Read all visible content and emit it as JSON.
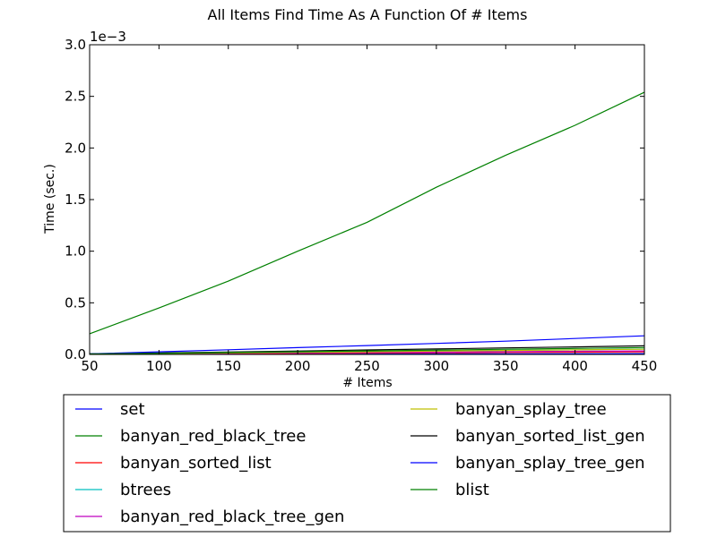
{
  "chart_data": {
    "type": "line",
    "title": "All Items Find Time As A Function Of # Items",
    "xlabel": "# Items",
    "ylabel": "Time (sec.)",
    "y_offset_label": "1e−3",
    "xlim": [
      50,
      450
    ],
    "ylim": [
      0,
      0.003
    ],
    "x_ticks": [
      50,
      100,
      150,
      200,
      250,
      300,
      350,
      400,
      450
    ],
    "x_tick_labels": [
      "50",
      "100",
      "150",
      "200",
      "250",
      "300",
      "350",
      "400",
      "450"
    ],
    "y_ticks": [
      0,
      0.0005,
      0.001,
      0.0015,
      0.002,
      0.0025,
      0.003
    ],
    "y_tick_labels": [
      "0.0",
      "0.5",
      "1.0",
      "1.5",
      "2.0",
      "2.5",
      "3.0"
    ],
    "grid": false,
    "legend_placement": "below",
    "x": [
      50,
      100,
      150,
      200,
      250,
      300,
      350,
      400,
      450
    ],
    "series": [
      {
        "name": "set",
        "color": "#0000ff",
        "values": [
          1.5e-06,
          2.5e-06,
          3e-06,
          4e-06,
          4.5e-06,
          5e-06,
          6e-06,
          7e-06,
          7.5e-06
        ]
      },
      {
        "name": "banyan_red_black_tree",
        "color": "#008000",
        "values": [
          0.0002,
          0.00045,
          0.00071,
          0.001,
          0.00128,
          0.00162,
          0.00193,
          0.00222,
          0.00254
        ]
      },
      {
        "name": "banyan_sorted_list",
        "color": "#ff0000",
        "values": [
          2e-06,
          4e-06,
          7e-06,
          1e-05,
          1.3e-05,
          1.6e-05,
          1.9e-05,
          2.2e-05,
          2.5e-05
        ]
      },
      {
        "name": "btrees",
        "color": "#00bfbf",
        "values": [
          4e-06,
          9e-06,
          1.5e-05,
          2.1e-05,
          2.7e-05,
          3.3e-05,
          3.9e-05,
          4.5e-05,
          5.2e-05
        ]
      },
      {
        "name": "banyan_red_black_tree_gen",
        "color": "#bf00bf",
        "values": [
          3e-06,
          6e-06,
          1e-05,
          1.4e-05,
          1.8e-05,
          2.2e-05,
          2.6e-05,
          3e-05,
          3.4e-05
        ]
      },
      {
        "name": "banyan_splay_tree",
        "color": "#bfbf00",
        "values": [
          4e-06,
          9e-06,
          1.4e-05,
          2e-05,
          2.6e-05,
          3.2e-05,
          3.8e-05,
          4.4e-05,
          5e-05
        ]
      },
      {
        "name": "banyan_sorted_list_gen",
        "color": "#000000",
        "values": [
          6e-06,
          1.4e-05,
          2.3e-05,
          3.3e-05,
          4.3e-05,
          5.3e-05,
          6.3e-05,
          7.3e-05,
          8.3e-05
        ]
      },
      {
        "name": "banyan_splay_tree_gen",
        "color": "#0000ff",
        "values": [
          5e-06,
          2.5e-05,
          4.5e-05,
          6.6e-05,
          8.6e-05,
          0.000107,
          0.000128,
          0.000154,
          0.00018
        ]
      },
      {
        "name": "blist",
        "color": "#008000",
        "values": [
          4e-06,
          1e-05,
          1.8e-05,
          2.6e-05,
          3.4e-05,
          4.2e-05,
          5e-05,
          5.8e-05,
          6.7e-05
        ]
      }
    ]
  }
}
